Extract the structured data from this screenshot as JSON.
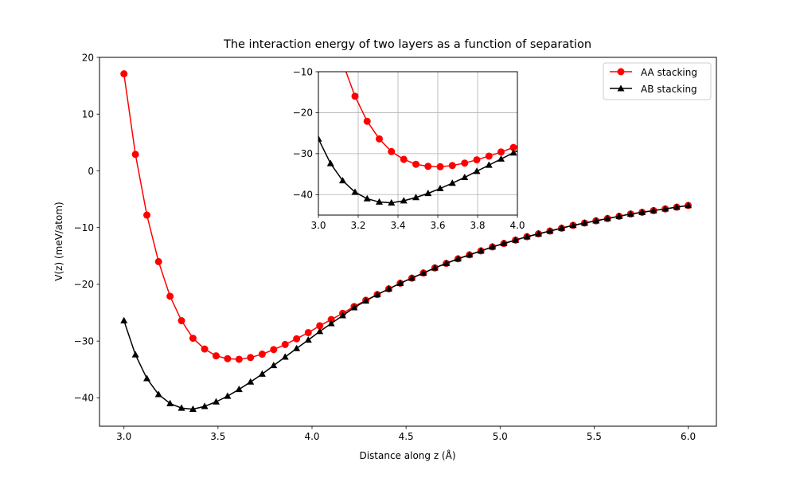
{
  "chart_data": [
    {
      "type": "line",
      "title": "The interaction energy of two layers as a function of separation",
      "xlabel": "Distance along z (Å)",
      "ylabel": "V(z) (meV/atom)",
      "xlim": [
        2.87,
        6.15
      ],
      "ylim": [
        -45,
        20
      ],
      "xticks": [
        "3.0",
        "3.5",
        "4.0",
        "4.5",
        "5.0",
        "5.5",
        "6.0"
      ],
      "yticks": [
        "20",
        "10",
        "0",
        "−10",
        "−20",
        "−30",
        "−40"
      ],
      "xtick_values": [
        3.0,
        3.5,
        4.0,
        4.5,
        5.0,
        5.5,
        6.0
      ],
      "ytick_values": [
        20,
        10,
        0,
        -10,
        -20,
        -30,
        -40
      ],
      "grid": false,
      "legend_position": "top-right",
      "x": [
        3.0,
        3.061,
        3.122,
        3.184,
        3.245,
        3.306,
        3.367,
        3.429,
        3.49,
        3.551,
        3.612,
        3.673,
        3.735,
        3.796,
        3.857,
        3.918,
        3.98,
        4.041,
        4.102,
        4.163,
        4.224,
        4.286,
        4.347,
        4.408,
        4.469,
        4.531,
        4.592,
        4.653,
        4.714,
        4.776,
        4.837,
        4.898,
        4.959,
        5.02,
        5.082,
        5.143,
        5.204,
        5.265,
        5.327,
        5.388,
        5.449,
        5.51,
        5.571,
        5.633,
        5.694,
        5.755,
        5.816,
        5.878,
        5.939,
        6.0
      ],
      "series": [
        {
          "name": "AA stacking",
          "color": "#ff0000",
          "marker": "circle",
          "values": [
            17.1,
            2.9,
            -7.8,
            -16.0,
            -22.1,
            -26.4,
            -29.5,
            -31.4,
            -32.6,
            -33.1,
            -33.2,
            -32.9,
            -32.3,
            -31.5,
            -30.6,
            -29.6,
            -28.5,
            -27.3,
            -26.2,
            -25.1,
            -23.9,
            -22.8,
            -21.8,
            -20.8,
            -19.8,
            -18.9,
            -18.0,
            -17.1,
            -16.3,
            -15.5,
            -14.8,
            -14.1,
            -13.4,
            -12.8,
            -12.2,
            -11.6,
            -11.1,
            -10.6,
            -10.1,
            -9.6,
            -9.2,
            -8.8,
            -8.4,
            -8.0,
            -7.6,
            -7.3,
            -7.0,
            -6.7,
            -6.4,
            -6.1
          ]
        },
        {
          "name": "AB stacking",
          "color": "#000000",
          "marker": "triangle",
          "values": [
            -26.4,
            -32.4,
            -36.6,
            -39.4,
            -41.0,
            -41.8,
            -42.0,
            -41.5,
            -40.7,
            -39.7,
            -38.5,
            -37.2,
            -35.8,
            -34.3,
            -32.8,
            -31.3,
            -29.8,
            -28.3,
            -26.9,
            -25.5,
            -24.1,
            -22.9,
            -21.8,
            -20.8,
            -19.8,
            -18.9,
            -18.0,
            -17.1,
            -16.3,
            -15.5,
            -14.8,
            -14.1,
            -13.4,
            -12.8,
            -12.2,
            -11.6,
            -11.1,
            -10.6,
            -10.1,
            -9.6,
            -9.2,
            -8.8,
            -8.4,
            -8.0,
            -7.6,
            -7.3,
            -7.0,
            -6.7,
            -6.4,
            -6.1
          ]
        }
      ]
    },
    {
      "type": "line",
      "title": "",
      "xlabel": "",
      "ylabel": "",
      "xlim": [
        3.0,
        4.0
      ],
      "ylim": [
        -45,
        -10
      ],
      "xticks": [
        "3.0",
        "3.2",
        "3.4",
        "3.6",
        "3.8",
        "4.0"
      ],
      "yticks": [
        "−10",
        "−20",
        "−30",
        "−40"
      ],
      "xtick_values": [
        3.0,
        3.2,
        3.4,
        3.6,
        3.8,
        4.0
      ],
      "ytick_values": [
        -10,
        -20,
        -30,
        -40
      ],
      "grid": true,
      "note": "inset zoom of the same series"
    }
  ]
}
